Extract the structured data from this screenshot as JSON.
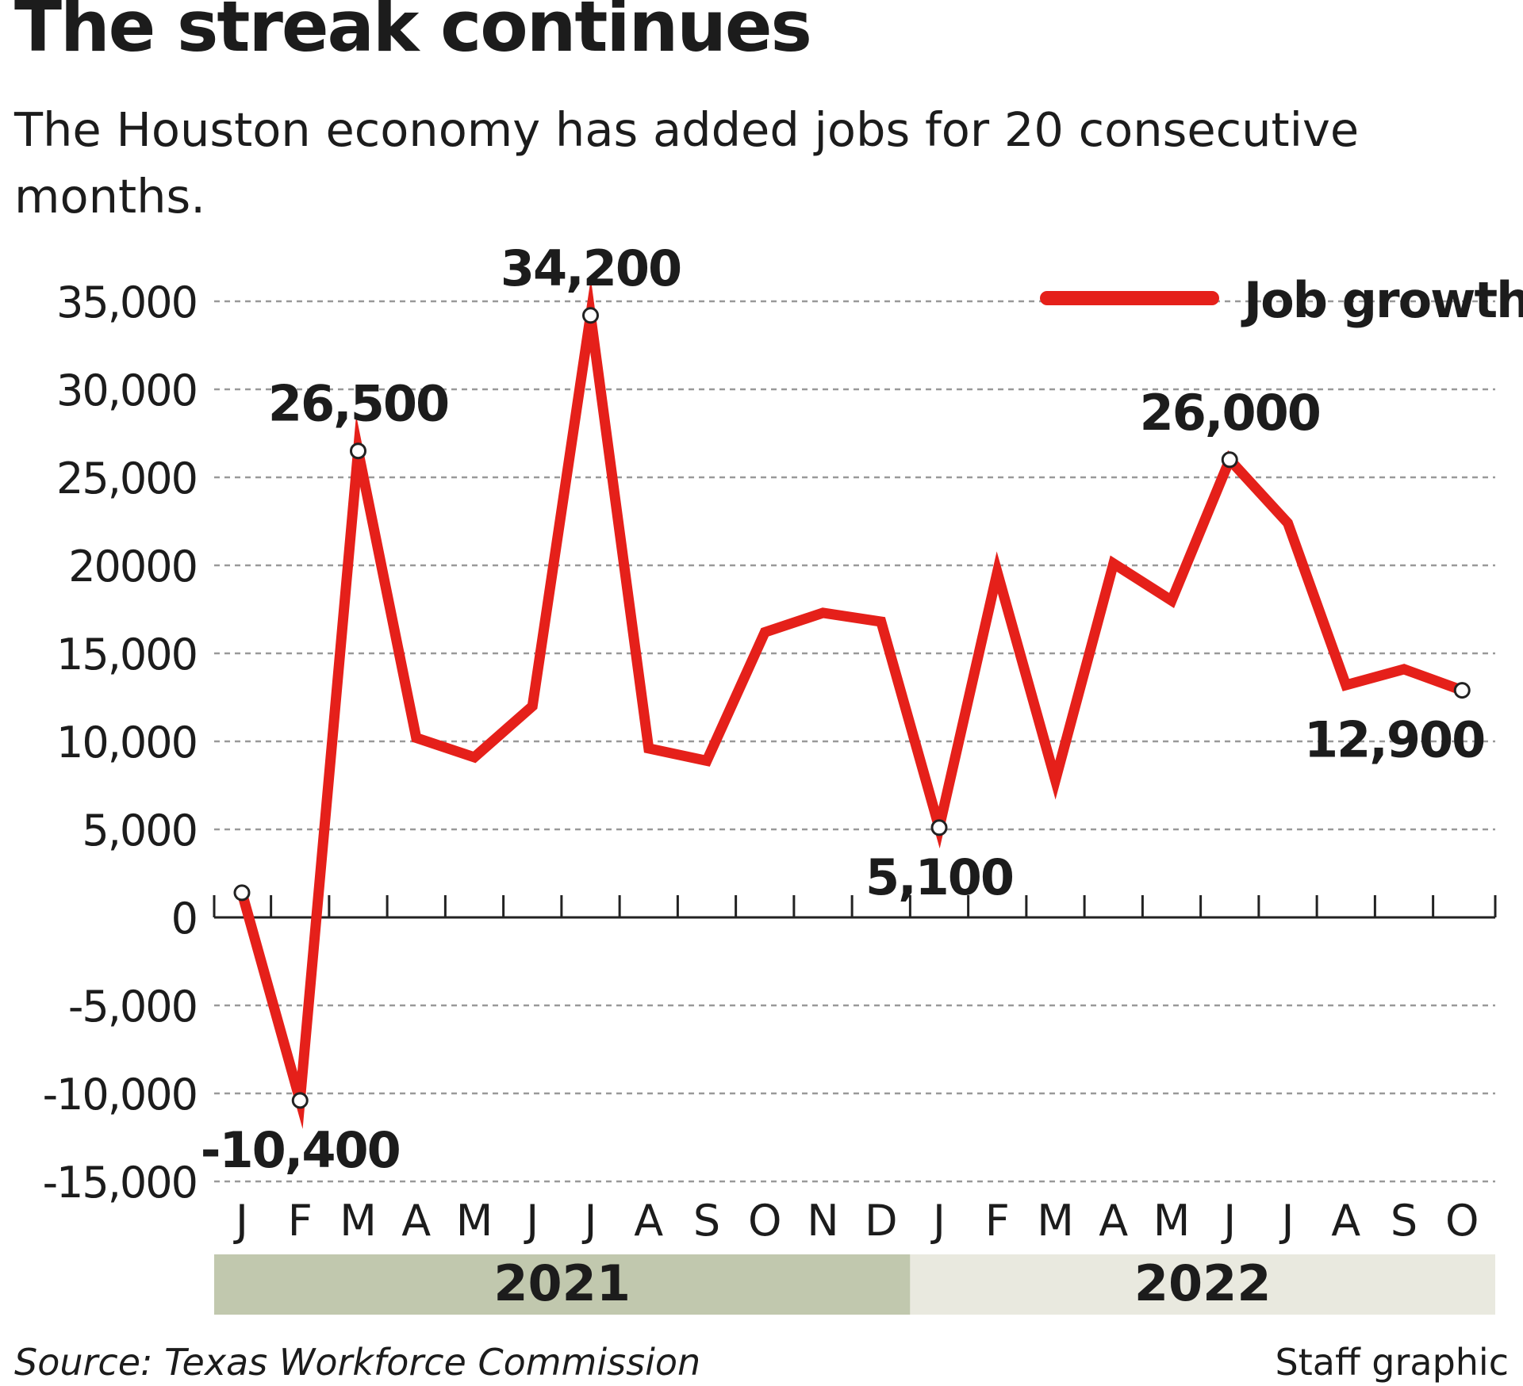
{
  "title": "The streak continues",
  "subtitle": "The Houston economy has added jobs for 20 consecutive months.",
  "source": "Source: Texas Workforce Commission",
  "credit": "Staff graphic",
  "legend_label": "Job growth",
  "colors": {
    "line": "#e5201a",
    "year_2021": "#c1c8ae",
    "year_2022": "#e9e9df",
    "grid": "#999999",
    "text": "#1c1c1c"
  },
  "chart_data": {
    "type": "line",
    "x": [
      "J",
      "F",
      "M",
      "A",
      "M",
      "J",
      "J",
      "A",
      "S",
      "O",
      "N",
      "D",
      "J",
      "F",
      "M",
      "A",
      "M",
      "J",
      "J",
      "A",
      "S",
      "O"
    ],
    "years": [
      {
        "label": "2021",
        "months": 12
      },
      {
        "label": "2022",
        "months": 10
      }
    ],
    "series": [
      {
        "name": "Job growth",
        "values": [
          1400,
          -10400,
          26500,
          10200,
          9100,
          12000,
          34200,
          9600,
          8900,
          16200,
          17300,
          16800,
          5100,
          19600,
          7800,
          20100,
          18000,
          26000,
          22400,
          13200,
          14100,
          12900
        ]
      }
    ],
    "annotations": [
      {
        "index": 1,
        "label": "-10,400",
        "pos": "below"
      },
      {
        "index": 2,
        "label": "26,500",
        "pos": "above"
      },
      {
        "index": 6,
        "label": "34,200",
        "pos": "above"
      },
      {
        "index": 12,
        "label": "5,100",
        "pos": "below"
      },
      {
        "index": 17,
        "label": "26,000",
        "pos": "above"
      },
      {
        "index": 21,
        "label": "12,900",
        "pos": "below-left"
      }
    ],
    "marker_indices": [
      0,
      1,
      2,
      6,
      12,
      17,
      21
    ],
    "yticks": [
      35000,
      30000,
      25000,
      20000,
      15000,
      10000,
      5000,
      0,
      -5000,
      -10000,
      -15000
    ],
    "ytick_labels": [
      "35,000",
      "30,000",
      "25,000",
      "20000",
      "15,000",
      "10,000",
      "5,000",
      "0",
      "-5,000",
      "-10,000",
      "-15,000"
    ],
    "ylim": [
      -15000,
      35000
    ],
    "grid": true,
    "legend_position": "top-right"
  }
}
